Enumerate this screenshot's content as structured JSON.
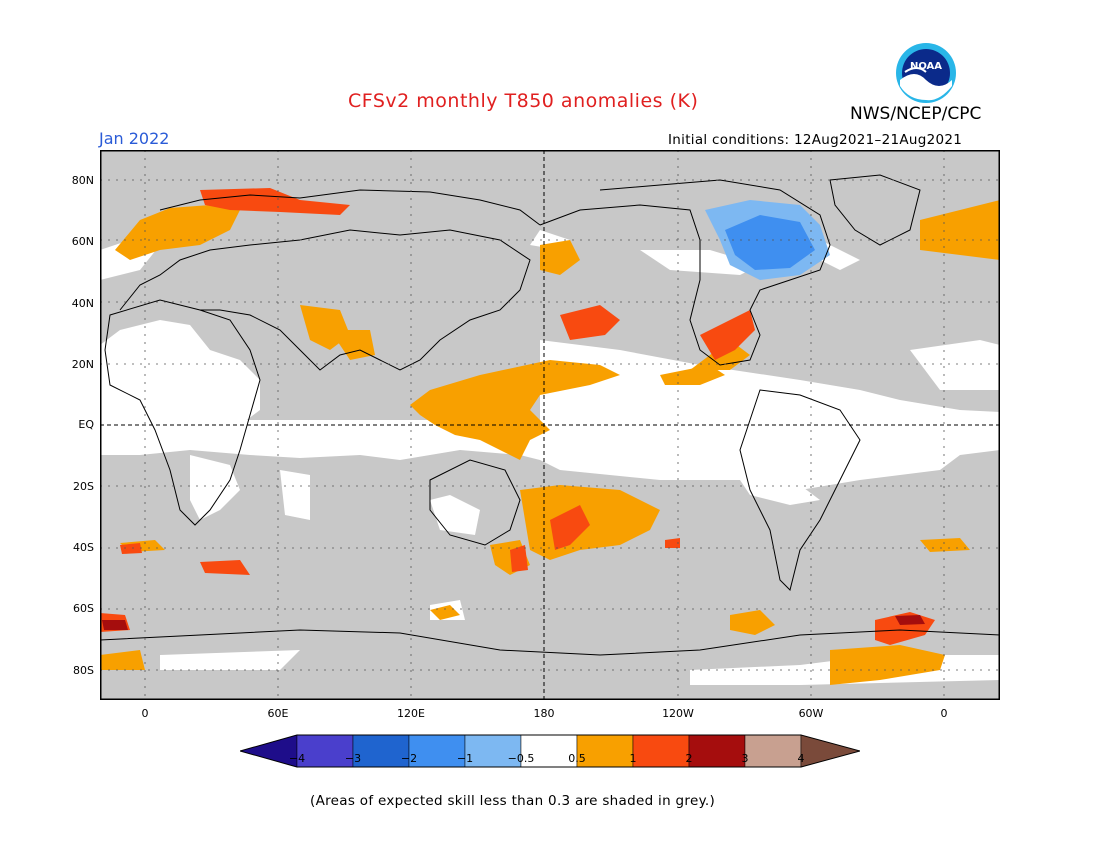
{
  "header": {
    "title": "CFSv2 monthly T850 anomalies (K)",
    "month": "Jan 2022",
    "initial_conditions": "Initial conditions: 12Aug2021–21Aug2021",
    "agency": "NWS/NCEP/CPC",
    "logo_text": "NOAA"
  },
  "map": {
    "lat_labels": [
      "80N",
      "60N",
      "40N",
      "20N",
      "EQ",
      "20S",
      "40S",
      "60S",
      "80S"
    ],
    "lon_labels": [
      "0",
      "60E",
      "120E",
      "180",
      "120W",
      "60W",
      "0"
    ]
  },
  "colorbar": {
    "tick_labels": [
      "−4",
      "−3",
      "−2",
      "−1",
      "−0.5",
      "0.5",
      "1",
      "2",
      "3",
      "4"
    ],
    "colors": {
      "lt_m4": "#1e0d8a",
      "m4_m3": "#4a3fcc",
      "m3_m2": "#1f64cf",
      "m2_m1": "#3f8ff0",
      "m1_m05": "#7db8f2",
      "neutral": "#ffffff",
      "p05_p1": "#f8a000",
      "p1_p2": "#f84a10",
      "p2_p3": "#a50d0d",
      "p3_p4": "#c8a090",
      "gt_p4": "#7a4a3a"
    }
  },
  "footnote": "(Areas of expected skill less than 0.3 are shaded in grey.)",
  "style": {
    "grey_skill": "#c8c8c8",
    "title_color": "#e02020",
    "month_color": "#2a5bd7"
  }
}
